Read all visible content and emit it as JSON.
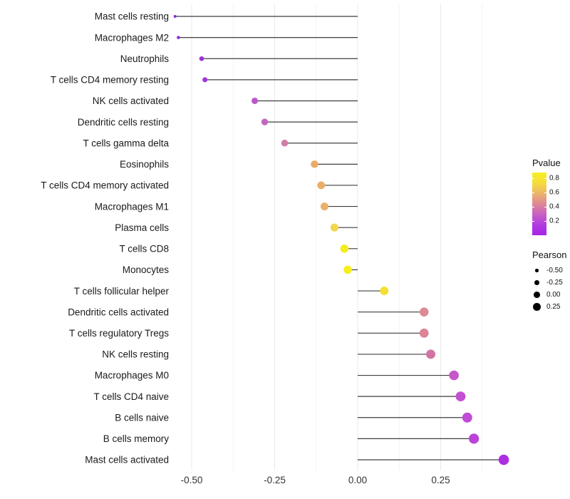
{
  "chart_data": {
    "type": "lollipop",
    "orientation": "horizontal",
    "title": "",
    "xlabel": "",
    "ylabel": "",
    "categories": [
      "Mast cells resting",
      "Macrophages M2",
      "Neutrophils",
      "T cells CD4 memory resting",
      "NK cells activated",
      "Dendritic cells resting",
      "T cells gamma delta",
      "Eosinophils",
      "T cells CD4 memory activated",
      "Macrophages M1",
      "Plasma cells",
      "T cells CD8",
      "Monocytes",
      "T cells follicular helper",
      "Dendritic cells activated",
      "T cells regulatory  Tregs",
      "NK cells resting",
      "Macrophages M0",
      "T cells CD4 naive",
      "B cells naive",
      "B cells memory",
      "Mast cells activated"
    ],
    "values": [
      -0.55,
      -0.54,
      -0.47,
      -0.46,
      -0.31,
      -0.28,
      -0.22,
      -0.13,
      -0.11,
      -0.1,
      -0.07,
      -0.04,
      -0.03,
      0.08,
      0.2,
      0.2,
      0.22,
      0.29,
      0.31,
      0.33,
      0.35,
      0.44
    ],
    "point_colors": [
      "#8C28E0",
      "#922BDE",
      "#9A34DB",
      "#9D37DA",
      "#BC55CC",
      "#C466C1",
      "#D07FA9",
      "#E9AB66",
      "#EAAE68",
      "#EBB06A",
      "#F2D750",
      "#F6ED1F",
      "#F7EE1E",
      "#F3DF35",
      "#DD8A96",
      "#DB8597",
      "#D175A2",
      "#C657CB",
      "#C350D1",
      "#C04BD4",
      "#BB43D7",
      "#AC2FE2"
    ],
    "point_radii": [
      2.0,
      2.3,
      3.3,
      3.5,
      4.5,
      4.7,
      4.8,
      5.2,
      5.4,
      5.5,
      5.6,
      5.8,
      5.8,
      6.0,
      6.3,
      6.4,
      6.5,
      6.8,
      6.9,
      7.0,
      7.1,
      7.3
    ],
    "x_ticks": [
      "-0.50",
      "-0.25",
      "0.00",
      "0.25"
    ],
    "x_tick_values": [
      -0.5,
      -0.25,
      0,
      0.25
    ],
    "x_minor_tick_values": [
      -0.375,
      -0.125,
      0.125,
      0.375
    ],
    "xlim": [
      -0.6,
      0.49
    ],
    "baseline": 0,
    "grid": "major-and-minor",
    "legend_position": "right",
    "stem_color": "#3F3F3F",
    "major_grid_color": "#E9E9E9",
    "minor_grid_color": "#F3F3F3",
    "axis_text_color": "#333333",
    "category_text_color": "#1A1A1A",
    "background_color": "#FFFFFF"
  },
  "legends": {
    "pvalue": {
      "title": "Pvalue",
      "ticks": [
        "0.8",
        "0.6",
        "0.4",
        "0.2"
      ],
      "gradient_top_to_bottom": [
        "#F9EE21",
        "#F5DC3C",
        "#EDB56A",
        "#DD8894",
        "#C85FC5",
        "#B13BE0",
        "#A624E6"
      ]
    },
    "pearson": {
      "title": "Pearson",
      "items": [
        {
          "label": "-0.50",
          "radius": 2.2
        },
        {
          "label": "-0.25",
          "radius": 3.4
        },
        {
          "label": "0.00",
          "radius": 4.4
        },
        {
          "label": "0.25",
          "radius": 5.2
        }
      ],
      "dot_color": "#000000"
    }
  }
}
